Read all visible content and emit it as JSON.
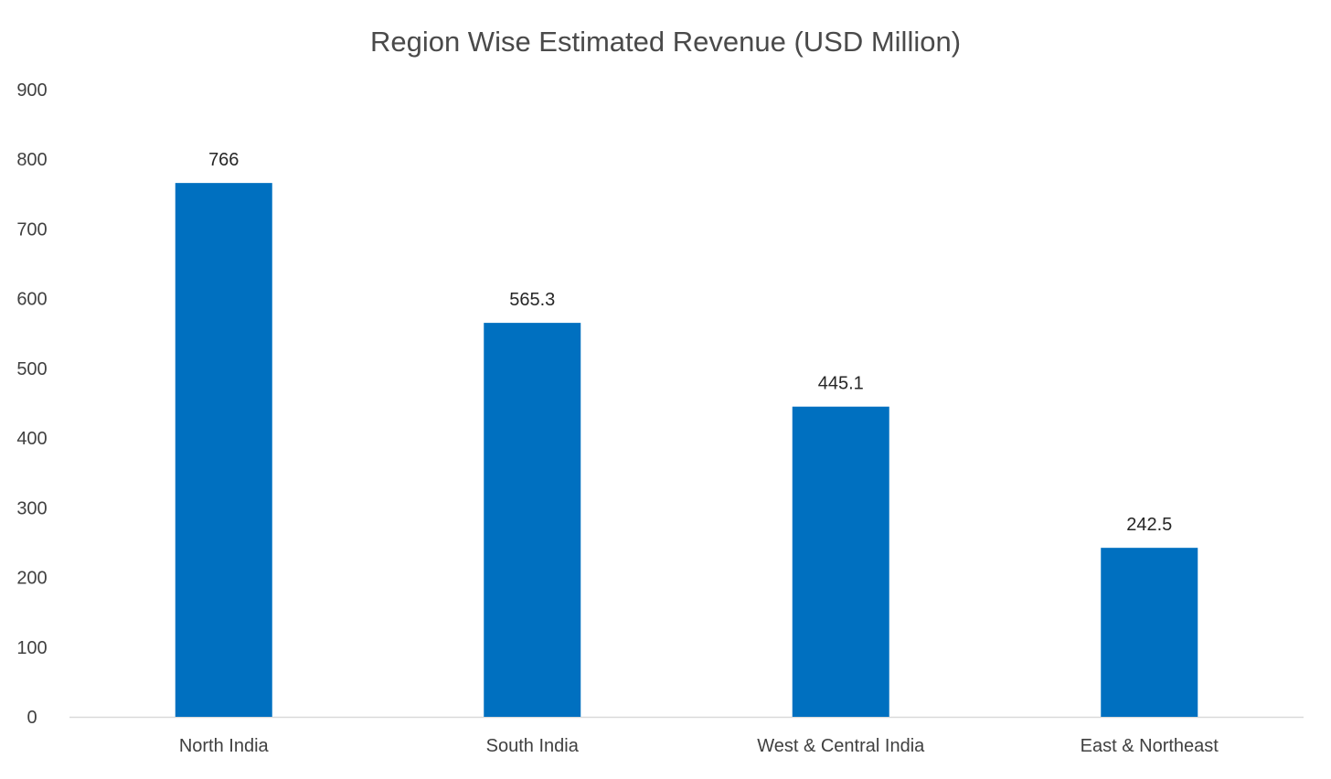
{
  "chart_data": {
    "type": "bar",
    "title": "Region Wise Estimated Revenue (USD Million)",
    "xlabel": "",
    "ylabel": "",
    "categories": [
      "North India",
      "South India",
      "West & Central India",
      "East & Northeast"
    ],
    "values": [
      766,
      565.3,
      445.1,
      242.5
    ],
    "value_labels": [
      "766",
      "565.3",
      "445.1",
      "242.5"
    ],
    "ylim": [
      0,
      900
    ],
    "yticks": [
      0,
      100,
      200,
      300,
      400,
      500,
      600,
      700,
      800,
      900
    ],
    "ytick_labels": [
      "0",
      "100",
      "200",
      "300",
      "400",
      "500",
      "600",
      "700",
      "800",
      "900"
    ],
    "grid": false,
    "legend": "none",
    "bar_color": "#0070c0"
  }
}
